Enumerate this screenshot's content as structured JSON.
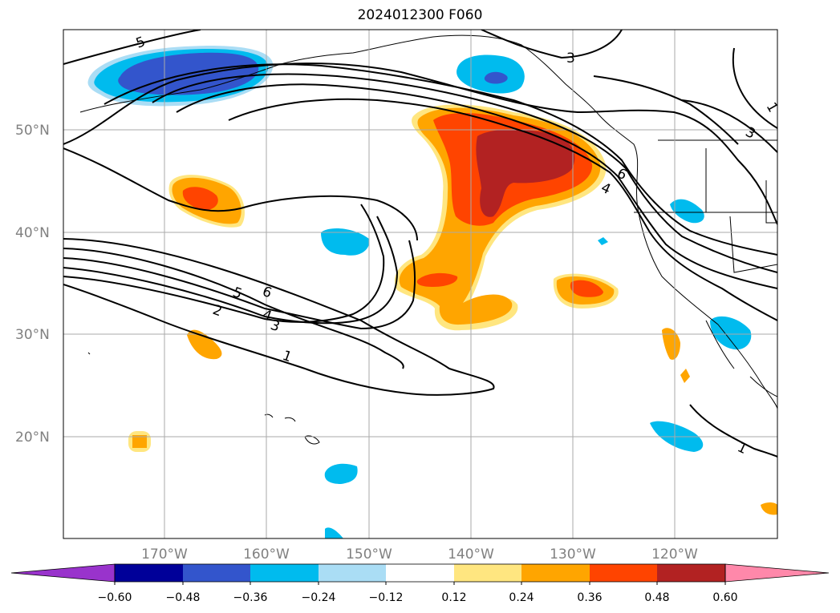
{
  "title": "2024012300 F060",
  "lat_labels": [
    "50°N",
    "40°N",
    "30°N",
    "20°N"
  ],
  "lon_labels": [
    "170°W",
    "160°W",
    "150°W",
    "140°W",
    "130°W",
    "120°W"
  ],
  "colorbar": {
    "ticks": [
      "−0.60",
      "−0.48",
      "−0.36",
      "−0.24",
      "−0.12",
      "0.12",
      "0.24",
      "0.36",
      "0.48",
      "0.60"
    ],
    "colors": [
      "#9933cc",
      "#000099",
      "#3355cc",
      "#00bbee",
      "#aaddf5",
      "#ffffff",
      "#ffe680",
      "#ffa500",
      "#ff4400",
      "#b22222",
      "#ff88aa"
    ]
  },
  "contour_labels": [
    "5",
    "3",
    "3",
    "1",
    "6",
    "4",
    "5",
    "6",
    "2",
    "4",
    "3",
    "1",
    "1"
  ],
  "colors": {
    "contour": "#000000",
    "grid": "#aaaaaa",
    "axis_label": "#808080"
  }
}
